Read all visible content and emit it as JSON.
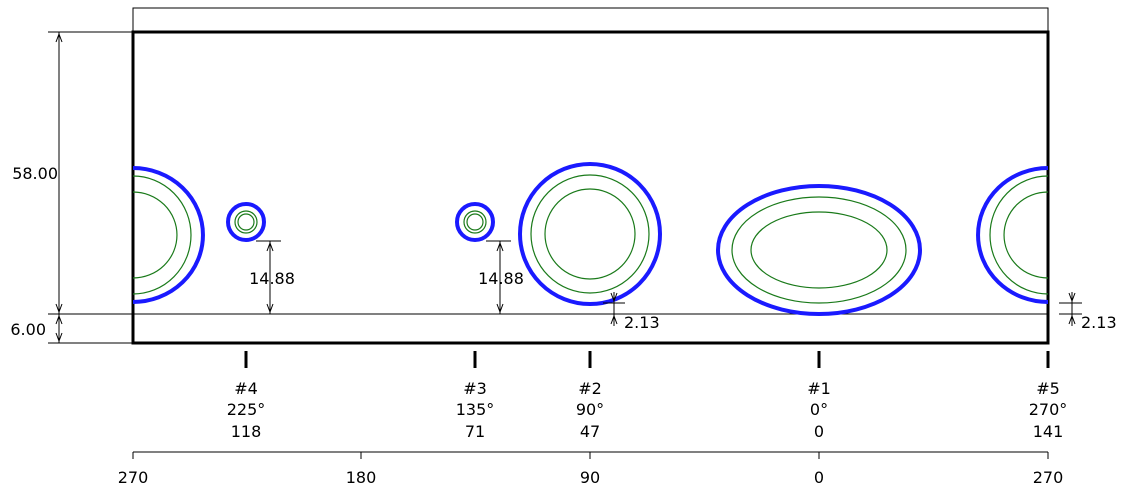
{
  "dimensions": {
    "height_total": "58.00",
    "height_bottom": "6.00",
    "offset_hole4": "14.88",
    "offset_hole3": "14.88",
    "offset_hole2": "2.13",
    "offset_hole5": "2.13"
  },
  "holes": [
    {
      "label": "#4",
      "angle": "225°",
      "position": "118"
    },
    {
      "label": "#3",
      "angle": "135°",
      "position": "71"
    },
    {
      "label": "#2",
      "angle": "90°",
      "position": "47"
    },
    {
      "label": "#1",
      "angle": "0°",
      "position": "0"
    },
    {
      "label": "#5",
      "angle": "270°",
      "position": "141"
    }
  ],
  "scale": [
    "270",
    "180",
    "90",
    "0",
    "270"
  ],
  "colors": {
    "opening": "#1a1aff",
    "contour": "#1a7a1a",
    "line": "#000000"
  }
}
